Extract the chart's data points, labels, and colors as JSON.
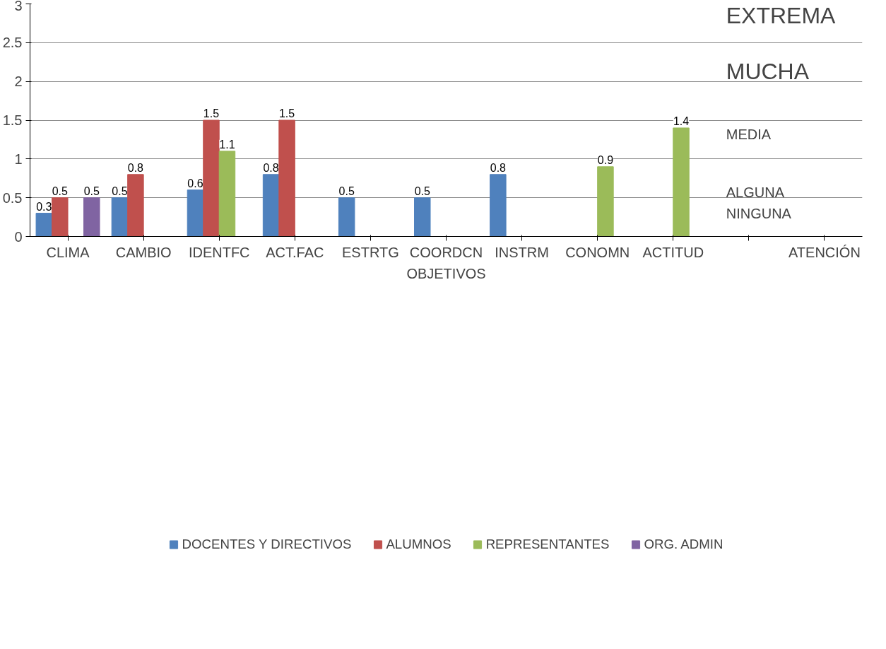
{
  "chart_data": {
    "type": "bar",
    "xlabel": "OBJETIVOS",
    "categories": [
      "CLIMA",
      "CAMBIO",
      "IDENTFC",
      "ACT.FAC",
      "ESTRTG",
      "COORDCN",
      "INSTRM",
      "CONOMN",
      "ACTITUD",
      null,
      "ATENCIÓN"
    ],
    "series": [
      {
        "name": "DOCENTES Y DIRECTIVOS",
        "color": "#4f81bd",
        "values": [
          0.3,
          0.5,
          0.6,
          0.8,
          0.5,
          0.5,
          0.8,
          null,
          null,
          null,
          null
        ]
      },
      {
        "name": "ALUMNOS",
        "color": "#c0504d",
        "values": [
          0.5,
          0.8,
          1.5,
          1.5,
          null,
          null,
          null,
          null,
          null,
          null,
          null
        ]
      },
      {
        "name": "REPRESENTANTES",
        "color": "#9bbb59",
        "values": [
          null,
          null,
          1.1,
          null,
          null,
          null,
          null,
          0.9,
          1.4,
          null,
          null
        ]
      },
      {
        "name": "ORG. ADMIN",
        "color": "#8064a2",
        "values": [
          0.5,
          null,
          null,
          null,
          null,
          null,
          null,
          null,
          null,
          null,
          null
        ]
      }
    ],
    "ylim": [
      0,
      3
    ],
    "yticks": [
      0,
      0.5,
      1,
      1.5,
      2,
      2.5,
      3
    ],
    "grid": "y",
    "legend": "bottom",
    "data_labels": true,
    "annotations": [
      "EXTREMA",
      "MUCHA",
      "MEDIA",
      "ALGUNA",
      "NINGUNA"
    ]
  }
}
